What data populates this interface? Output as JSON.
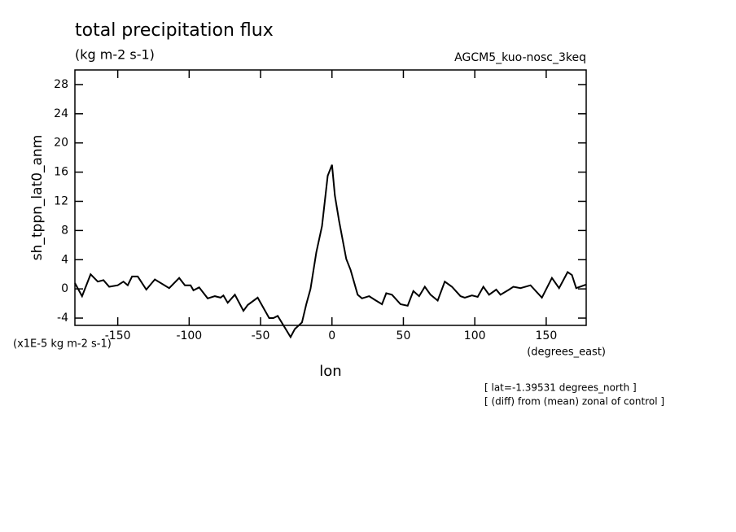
{
  "chart_data": {
    "type": "line",
    "title": "total precipitation flux",
    "subtitle": "(kg m-2 s-1)",
    "run_label": "AGCM5_kuo-nosc_3keq",
    "y_label": "sh_tppn_lat0_anm",
    "y_units": "(x1E-5 kg m-2 s-1)",
    "x_label": "lon",
    "x_units": "(degrees_east)",
    "annotations": [
      "[ lat=-1.39531 degrees_north ]",
      "[ (diff) from (mean) zonal of control ]"
    ],
    "x": [
      -180,
      -175,
      -169,
      -164,
      -160,
      -156,
      -150,
      -146,
      -143,
      -140,
      -136,
      -130,
      -124,
      -114,
      -107,
      -103,
      -99,
      -97,
      -93,
      -87,
      -82,
      -78,
      -76,
      -73,
      -68,
      -62,
      -59,
      -52,
      -44,
      -41,
      -38,
      -29,
      -26,
      -21,
      -18,
      -15,
      -11,
      -7,
      -3,
      0,
      2,
      5,
      10,
      13,
      18,
      21,
      26,
      30,
      35,
      38,
      42,
      48,
      53,
      57,
      61,
      65,
      69,
      74,
      79,
      84,
      90,
      93,
      98,
      102,
      106,
      110,
      115,
      118,
      124,
      127,
      132,
      139,
      147,
      154,
      159,
      165,
      168,
      171,
      178
    ],
    "values": [
      0.8,
      -1,
      2,
      1,
      1.2,
      0.3,
      0.5,
      1,
      0.5,
      1.7,
      1.7,
      -0.1,
      1.3,
      0.1,
      1.5,
      0.5,
      0.5,
      -0.2,
      0.2,
      -1.3,
      -1,
      -1.2,
      -0.9,
      -1.9,
      -0.8,
      -3,
      -2.2,
      -1.2,
      -4,
      -4,
      -3.7,
      -6.6,
      -5.5,
      -4.6,
      -2.1,
      0,
      5,
      8.6,
      15.5,
      17,
      12.8,
      9.3,
      4.1,
      2.6,
      -0.8,
      -1.3,
      -1,
      -1.5,
      -2.1,
      -0.6,
      -0.8,
      -2.1,
      -2.3,
      -0.3,
      -1,
      0.3,
      -0.8,
      -1.6,
      1,
      0.3,
      -1,
      -1.2,
      -0.9,
      -1.1,
      0.3,
      -0.8,
      -0.1,
      -0.8,
      -0.1,
      0.3,
      0.1,
      0.5,
      -1.2,
      1.5,
      0.1,
      2.3,
      1.9,
      0.1,
      0.6
    ],
    "color": "#000000",
    "xlim": [
      -180,
      178
    ],
    "xticks": [
      -150,
      -100,
      -50,
      0,
      50,
      100,
      150
    ],
    "ylim": [
      -5,
      30
    ],
    "yticks": [
      -4,
      0,
      4,
      8,
      12,
      16,
      20,
      24,
      28
    ]
  }
}
